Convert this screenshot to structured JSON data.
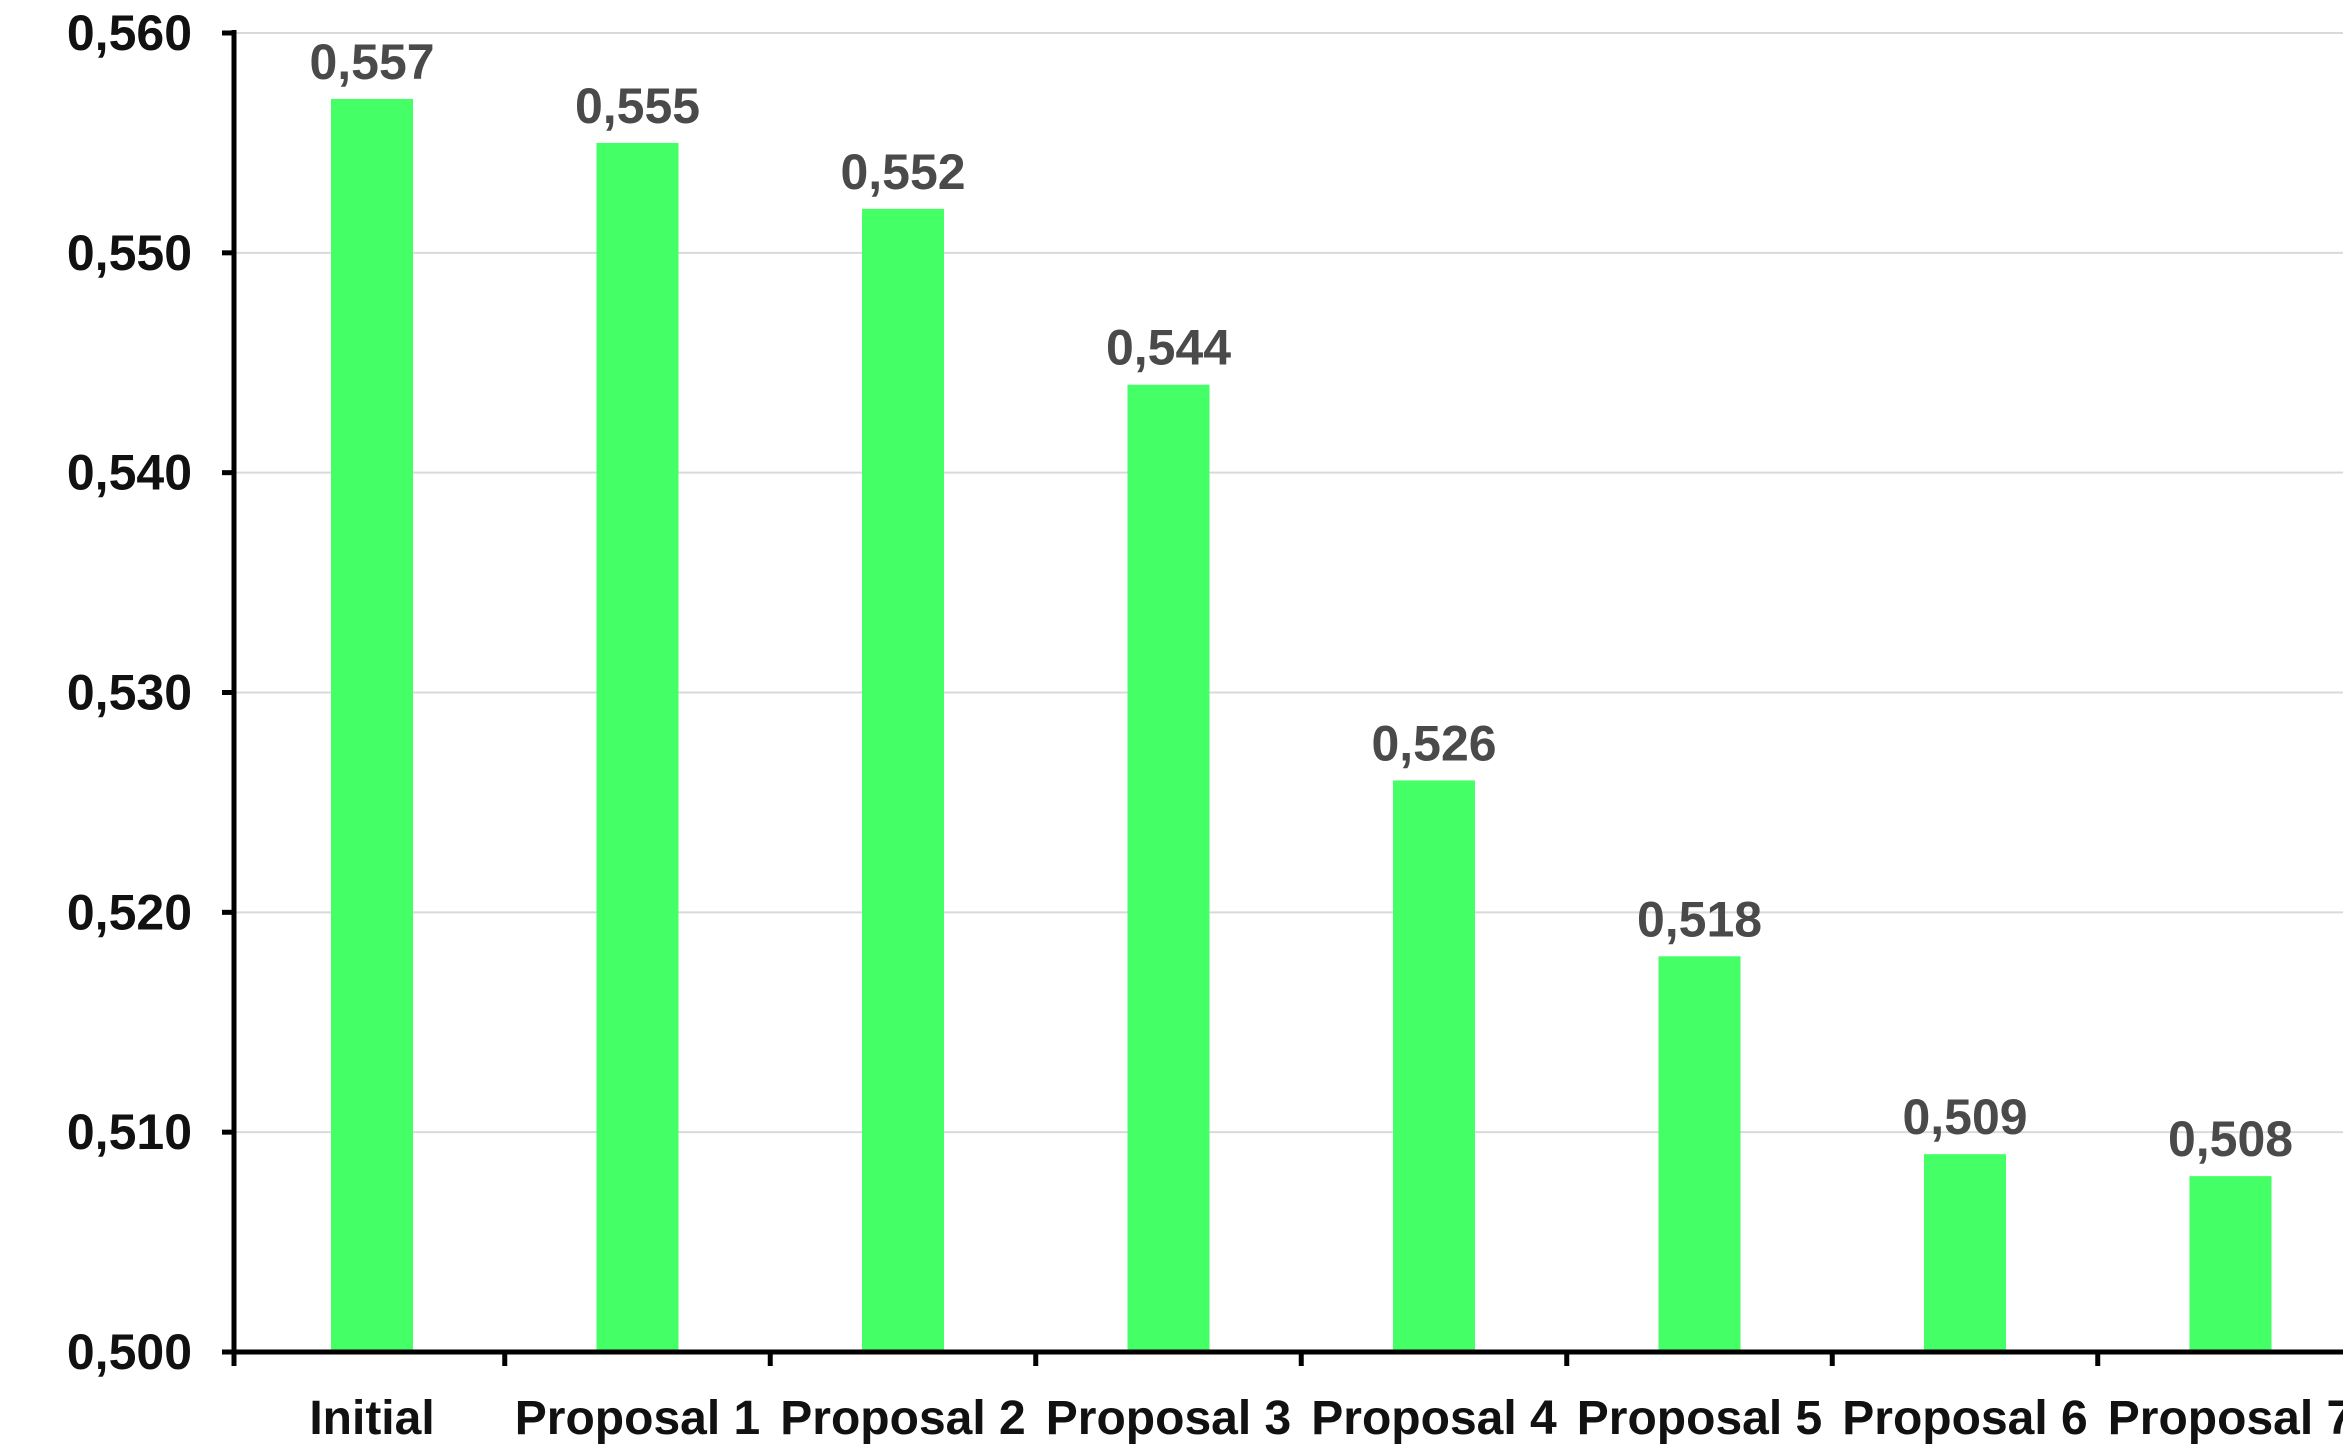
{
  "chart_data": {
    "type": "bar",
    "categories": [
      "Initial",
      "Proposal 1",
      "Proposal 2",
      "Proposal 3",
      "Proposal 4",
      "Proposal 5",
      "Proposal 6",
      "Proposal 7"
    ],
    "values": [
      0.557,
      0.555,
      0.552,
      0.544,
      0.526,
      0.518,
      0.509,
      0.508
    ],
    "value_labels": [
      "0,557",
      "0,555",
      "0,552",
      "0,544",
      "0,526",
      "0,518",
      "0,509",
      "0,508"
    ],
    "y_ticks": [
      0.5,
      0.51,
      0.52,
      0.53,
      0.54,
      0.55,
      0.56
    ],
    "y_tick_labels": [
      "0,500",
      "0,510",
      "0,520",
      "0,530",
      "0,540",
      "0,550",
      "0,560"
    ],
    "ylim": [
      0.5,
      0.56
    ],
    "title": "",
    "xlabel": "",
    "ylabel": "",
    "grid": "horizontal",
    "legend": "none",
    "bar_color": "#44ff66",
    "axis_color": "#000000",
    "grid_color": "#d9d9d9"
  }
}
